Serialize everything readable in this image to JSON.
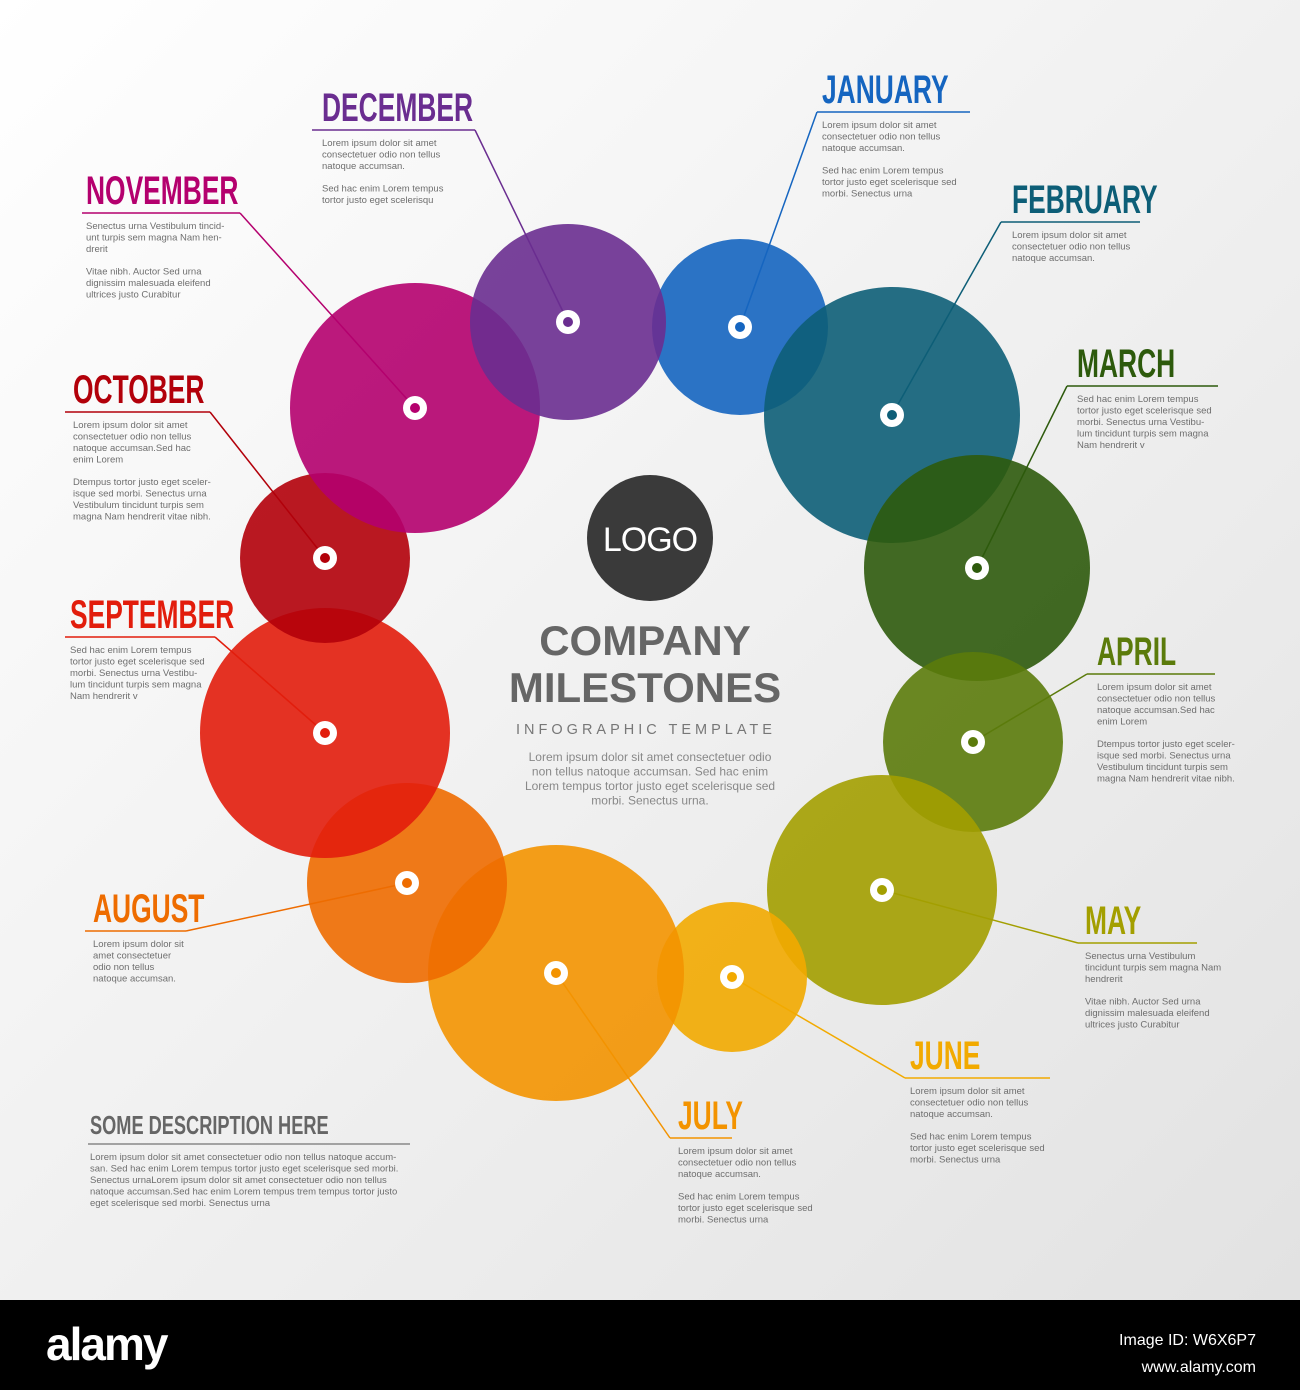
{
  "logo": "LOGO",
  "title": [
    "COMPANY",
    "MILESTONES"
  ],
  "subtitle": "INFOGRAPHIC TEMPLATE",
  "description": [
    "Lorem ipsum dolor sit amet consectetuer odio",
    "non tellus natoque accumsan. Sed hac enim",
    "Lorem tempus tortor justo eget scelerisque sed",
    "morbi. Senectus urna."
  ],
  "months": [
    {
      "name": "JANUARY",
      "color": "#1565c0",
      "paragraphs": [
        [
          "Lorem ipsum dolor sit amet",
          "consectetuer odio non tellus",
          "natoque accumsan."
        ],
        [
          "Sed hac enim Lorem tempus",
          "tortor justo eget scelerisque sed",
          "morbi. Senectus urna"
        ]
      ]
    },
    {
      "name": "FEBRUARY",
      "color": "#0d5e77",
      "paragraphs": [
        [
          "Lorem ipsum dolor sit amet",
          "consectetuer odio non tellus",
          "natoque accumsan."
        ]
      ]
    },
    {
      "name": "MARCH",
      "color": "#2d5a0c",
      "paragraphs": [
        [
          "Sed hac enim Lorem tempus",
          "tortor justo eget scelerisque sed",
          "morbi. Senectus urna Vestibu-",
          "lum tincidunt turpis sem magna",
          "Nam hendrerit v"
        ]
      ]
    },
    {
      "name": "APRIL",
      "color": "#5b7b0b",
      "paragraphs": [
        [
          "Lorem ipsum dolor sit amet",
          "consectetuer odio non tellus",
          "natoque accumsan.Sed hac",
          "enim Lorem"
        ],
        [
          "Dtempus tortor justo eget sceler-",
          "isque sed morbi. Senectus urna",
          "Vestibulum tincidunt turpis sem",
          "magna Nam hendrerit vitae nibh."
        ]
      ]
    },
    {
      "name": "MAY",
      "color": "#a39f00",
      "paragraphs": [
        [
          "Senectus urna Vestibulum",
          "tincidunt turpis sem magna Nam",
          "hendrerit"
        ],
        [
          "Vitae nibh. Auctor Sed urna",
          "dignissim malesuada eleifend",
          "ultrices justo Curabitur"
        ]
      ]
    },
    {
      "name": "JUNE",
      "color": "#f2aa00",
      "paragraphs": [
        [
          "Lorem ipsum dolor sit amet",
          "consectetuer odio non tellus",
          "natoque accumsan."
        ],
        [
          "Sed hac enim Lorem tempus",
          "tortor justo eget scelerisque sed",
          "morbi. Senectus urna"
        ]
      ]
    },
    {
      "name": "JULY",
      "color": "#f39300",
      "paragraphs": [
        [
          "Lorem ipsum dolor sit amet",
          "consectetuer odio non tellus",
          "natoque accumsan."
        ],
        [
          "Sed hac enim Lorem tempus",
          "tortor justo eget scelerisque sed",
          "morbi. Senectus urna"
        ]
      ]
    },
    {
      "name": "AUGUST",
      "color": "#ee6c00",
      "paragraphs": [
        [
          "Lorem ipsum dolor sit",
          "amet consectetuer",
          "odio non tellus",
          "natoque accumsan."
        ]
      ]
    },
    {
      "name": "SEPTEMBER",
      "color": "#e21d0c",
      "paragraphs": [
        [
          "Sed hac enim Lorem tempus",
          "tortor justo eget scelerisque sed",
          "morbi. Senectus urna Vestibu-",
          "lum tincidunt turpis sem magna",
          "Nam hendrerit v"
        ]
      ]
    },
    {
      "name": "OCTOBER",
      "color": "#b2000a",
      "paragraphs": [
        [
          "Lorem ipsum dolor sit amet",
          "consectetuer odio non tellus",
          "natoque accumsan.Sed hac",
          "enim Lorem"
        ],
        [
          "Dtempus tortor justo eget sceler-",
          "isque sed morbi. Senectus urna",
          "Vestibulum tincidunt turpis sem",
          "magna Nam hendrerit vitae nibh."
        ]
      ]
    },
    {
      "name": "NOVEMBER",
      "color": "#b4006e",
      "paragraphs": [
        [
          "Senectus urna Vestibulum tincid-",
          "unt turpis sem magna Nam hen-",
          "drerit"
        ],
        [
          "Vitae nibh. Auctor Sed urna",
          "dignissim malesuada eleifend",
          "ultrices justo Curabitur"
        ]
      ]
    },
    {
      "name": "DECEMBER",
      "color": "#6a2d90",
      "paragraphs": [
        [
          "Lorem ipsum dolor sit amet",
          "consectetuer odio non tellus",
          "natoque accumsan."
        ],
        [
          "Sed hac enim Lorem tempus",
          "tortor justo eget scelerisqu"
        ]
      ]
    }
  ],
  "note": {
    "title": "SOME DESCRIPTION HERE",
    "lines": [
      "Lorem ipsum dolor sit amet consectetuer odio non tellus natoque accum-",
      "san. Sed hac enim Lorem tempus tortor justo eget scelerisque sed morbi.",
      "Senectus urnaLorem ipsum dolor sit amet consectetuer odio non tellus",
      "natoque accumsan.Sed hac enim Lorem tempus trem tempus tortor justo",
      "eget scelerisque sed morbi. Senectus urna"
    ]
  },
  "footer": {
    "brand": "alamy",
    "image_id": "Image ID: W6X6P7",
    "url": "www.alamy.com"
  }
}
